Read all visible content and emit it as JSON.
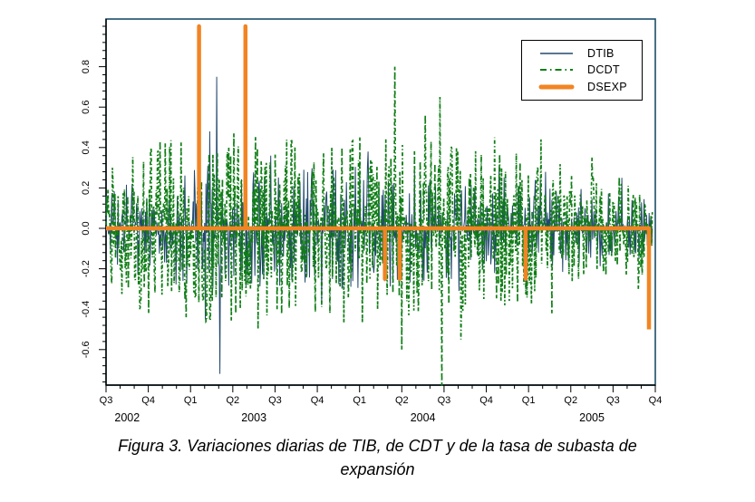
{
  "figure": {
    "caption_line1": "Figura 3. Variaciones diarias de TIB, de CDT y de la tasa de subasta de",
    "caption_line2": "expansión"
  },
  "legend": {
    "items": [
      {
        "label": "DTIB",
        "color": "#23486e",
        "style": "solid-thin"
      },
      {
        "label": "DCDT",
        "color": "#107e16",
        "style": "dash-dot"
      },
      {
        "label": "DSEXP",
        "color": "#f28422",
        "style": "solid-thick"
      }
    ]
  },
  "chart_data": {
    "type": "line",
    "title": "",
    "xlabel": "",
    "ylabel": "",
    "grid": false,
    "legend_position": "top-right",
    "x_range": {
      "start": "2002-Q3",
      "end": "2005-Q4"
    },
    "x_axis": {
      "quarter_labels": [
        "Q3",
        "Q4",
        "Q1",
        "Q2",
        "Q3",
        "Q4",
        "Q1",
        "Q2",
        "Q3",
        "Q4",
        "Q1",
        "Q2",
        "Q3",
        "Q4"
      ],
      "minor_ticks_per_quarter": 3,
      "year_labels": [
        {
          "label": "2002",
          "q_center": 0.5
        },
        {
          "label": "2003",
          "q_center": 3.5
        },
        {
          "label": "2004",
          "q_center": 7.5
        },
        {
          "label": "2005",
          "q_center": 11.5
        }
      ]
    },
    "y_axis": {
      "tick_values": [
        -0.6,
        -0.4,
        -0.2,
        0.0,
        0.2,
        0.4,
        0.6,
        0.8
      ],
      "tick_labels": [
        "-0.6",
        "-0.4",
        "-0.2",
        "0.0",
        "0.2",
        "0.4",
        "0.6",
        "0.8"
      ],
      "min": -0.78,
      "max": 1.04,
      "minor_step": 0.04,
      "labels_rotated_deg": -90
    },
    "series": {
      "DSEXP": {
        "name": "DSEXP",
        "color": "#f28422",
        "line_width": 4.5,
        "baseline": 0.0,
        "events": [
          {
            "q": 2.2,
            "value": 1.0
          },
          {
            "q": 3.3,
            "value": 1.0
          },
          {
            "q": 6.6,
            "value": -0.25
          },
          {
            "q": 6.95,
            "value": -0.25
          },
          {
            "q": 9.93,
            "value": -0.25
          },
          {
            "q": 12.85,
            "value": -0.5
          }
        ],
        "ends_at_q": 12.85
      },
      "DTIB": {
        "name": "DTIB",
        "color": "#23486e",
        "line_width": 1.0,
        "style": "solid",
        "n_points": 860,
        "seed": 20031,
        "tail_exponent": 2.4,
        "q_end": 12.93,
        "amplitude_by_quarter": [
          0.2,
          0.24,
          0.3,
          0.33,
          0.3,
          0.3,
          0.32,
          0.28,
          0.26,
          0.28,
          0.26,
          0.22,
          0.18,
          0.15
        ],
        "notable_spikes": [
          {
            "q": 2.35,
            "value": -0.45
          },
          {
            "q": 2.45,
            "value": 0.48
          },
          {
            "q": 2.62,
            "value": 0.75
          },
          {
            "q": 2.7,
            "value": -0.72
          },
          {
            "q": 3.9,
            "value": 0.36
          },
          {
            "q": 5.1,
            "value": -0.38
          },
          {
            "q": 6.2,
            "value": 0.38
          },
          {
            "q": 8.35,
            "value": -0.31
          },
          {
            "q": 9.3,
            "value": 0.3
          },
          {
            "q": 9.95,
            "value": -0.3
          },
          {
            "q": 10.4,
            "value": 0.28
          },
          {
            "q": 12.2,
            "value": 0.25
          }
        ]
      },
      "DCDT": {
        "name": "DCDT",
        "color": "#107e16",
        "line_width": 1.7,
        "style": "dash-dot",
        "n_points": 860,
        "seed": 7707,
        "tail_exponent": 1.9,
        "q_end": 12.93,
        "amplitude_by_quarter": [
          0.34,
          0.42,
          0.46,
          0.48,
          0.45,
          0.46,
          0.48,
          0.46,
          0.42,
          0.4,
          0.38,
          0.32,
          0.26,
          0.22
        ],
        "notable_spikes": [
          {
            "q": 0.15,
            "value": 0.3
          },
          {
            "q": 0.8,
            "value": -0.4
          },
          {
            "q": 1.4,
            "value": 0.42
          },
          {
            "q": 1.9,
            "value": -0.44
          },
          {
            "q": 2.9,
            "value": 0.4
          },
          {
            "q": 3.6,
            "value": -0.5
          },
          {
            "q": 4.4,
            "value": 0.44
          },
          {
            "q": 5.3,
            "value": -0.42
          },
          {
            "q": 6.0,
            "value": 0.45
          },
          {
            "q": 6.83,
            "value": 0.8
          },
          {
            "q": 7.0,
            "value": -0.6
          },
          {
            "q": 7.55,
            "value": 0.56
          },
          {
            "q": 7.9,
            "value": 0.65
          },
          {
            "q": 7.95,
            "value": -0.78
          },
          {
            "q": 8.4,
            "value": -0.55
          },
          {
            "q": 9.2,
            "value": 0.45
          },
          {
            "q": 10.3,
            "value": 0.44
          },
          {
            "q": 10.55,
            "value": -0.42
          },
          {
            "q": 11.5,
            "value": 0.35
          },
          {
            "q": 12.6,
            "value": -0.3
          }
        ]
      }
    },
    "frame_color": "#1a4d68"
  }
}
